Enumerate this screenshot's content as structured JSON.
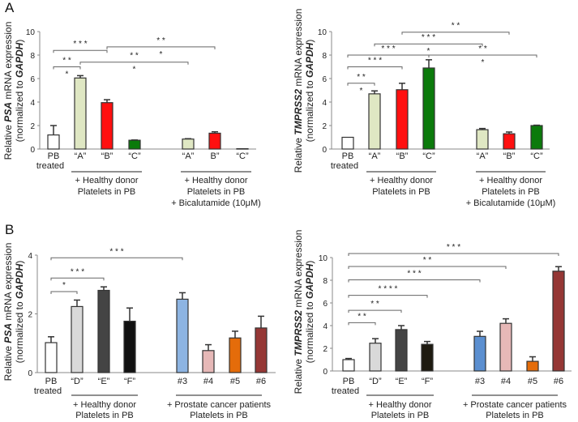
{
  "panels": {
    "a": "A",
    "b": "B"
  },
  "chart_data": [
    {
      "type": "bar",
      "title": "",
      "ylabel": {
        "line1": [
          "Relative ",
          "PSA",
          " mRNA expression"
        ],
        "line2": [
          "(normalized to ",
          "GAPDH",
          ")"
        ]
      },
      "ylim": [
        0,
        10
      ],
      "yticks": [
        0,
        2,
        4,
        6,
        8,
        10
      ],
      "categories": [
        [
          "PB",
          "treated"
        ],
        [
          "“A”"
        ],
        [
          "“B”"
        ],
        [
          "“C”"
        ],
        [
          "“A”"
        ],
        [
          "B”"
        ],
        [
          "“C”"
        ]
      ],
      "values": [
        1.2,
        6.05,
        3.95,
        0.75,
        0.85,
        1.35,
        0.03
      ],
      "errors": [
        0.8,
        0.2,
        0.25,
        0.02,
        0.03,
        0.12,
        0.0
      ],
      "colors": [
        "#ffffff",
        "#dfe7c3",
        "#ff1010",
        "#0b7a0b",
        "#dfe7c3",
        "#ff1010",
        "#0b7a0b"
      ],
      "groups": [
        {
          "lines": [
            "+ Healthy donor",
            "Platelets in PB"
          ]
        },
        {
          "lines": [
            "+ Healthy donor",
            "Platelets in PB",
            "+ Bicalutamide (10μM)"
          ]
        }
      ],
      "significance": [
        {
          "from": 0,
          "to": 1,
          "y": 7.0,
          "label": "* *",
          "label2": "*"
        },
        {
          "from": 0,
          "to": 2,
          "y": 8.4,
          "label": "* * *",
          "label2": ""
        },
        {
          "from": 1,
          "to": 4,
          "y": 7.4,
          "label": "* *",
          "label2": "*"
        },
        {
          "from": 2,
          "to": 5,
          "y": 8.7,
          "label": "* *",
          "label2": "*"
        }
      ]
    },
    {
      "type": "bar",
      "title": "",
      "ylabel": {
        "line1": [
          "Relative ",
          "TMPRSS2",
          " mRNA expression"
        ],
        "line2": [
          "(normalized to ",
          "GAPDH",
          ")"
        ]
      },
      "ylim": [
        0,
        10
      ],
      "yticks": [
        0,
        2,
        4,
        6,
        8,
        10
      ],
      "categories": [
        [
          "PB",
          "treated"
        ],
        [
          "“A”"
        ],
        [
          "“B”"
        ],
        [
          "“C”"
        ],
        [
          "“A”"
        ],
        [
          "“B”"
        ],
        [
          "“C”"
        ]
      ],
      "values": [
        1.0,
        4.7,
        5.05,
        6.9,
        1.65,
        1.3,
        2.0
      ],
      "errors": [
        0.0,
        0.25,
        0.55,
        0.7,
        0.1,
        0.15,
        0.03
      ],
      "colors": [
        "#ffffff",
        "#dfe7c3",
        "#ff1010",
        "#0b7a0b",
        "#dfe7c3",
        "#ff1010",
        "#0b7a0b"
      ],
      "groups": [
        {
          "lines": [
            "+ Healthy donor",
            "Platelets in PB"
          ]
        },
        {
          "lines": [
            "+ Healthy donor",
            "Platelets in PB",
            "+ Bicalutamide (10μM)"
          ]
        }
      ],
      "significance": [
        {
          "from": 0,
          "to": 1,
          "y": 5.6,
          "label": "* *",
          "label2": "*"
        },
        {
          "from": 0,
          "to": 2,
          "y": 7.0,
          "label": "* * *",
          "label2": ""
        },
        {
          "from": 0,
          "to": 3,
          "y": 8.0,
          "label": "* * *",
          "label2": ""
        },
        {
          "from": 3,
          "to": 6,
          "y": 8.0,
          "label": "* *",
          "label2": "*"
        },
        {
          "from": 1,
          "to": 4,
          "y": 8.95,
          "label": "* *      *",
          "label2": "*"
        },
        {
          "from": 2,
          "to": 5,
          "y": 9.95,
          "label": "* *",
          "label2": ""
        }
      ]
    },
    {
      "type": "bar",
      "title": "",
      "ylabel": {
        "line1": [
          "Relative ",
          "PSA",
          " mRNA expression"
        ],
        "line2": [
          "(normalized to ",
          "GAPDH",
          ")"
        ]
      },
      "ylim": [
        0,
        4
      ],
      "yticks": [
        0,
        2,
        4
      ],
      "categories": [
        [
          "PB",
          "treated"
        ],
        [
          "“D”"
        ],
        [
          "“E”"
        ],
        [
          "“F”"
        ],
        [
          "#3"
        ],
        [
          "#4"
        ],
        [
          "#5"
        ],
        [
          "#6"
        ]
      ],
      "values": [
        1.02,
        2.25,
        2.8,
        1.75,
        2.5,
        0.75,
        1.18,
        1.52
      ],
      "errors": [
        0.2,
        0.22,
        0.12,
        0.45,
        0.22,
        0.2,
        0.23,
        0.4
      ],
      "colors": [
        "#ffffff",
        "#d9d9d9",
        "#444444",
        "#111111",
        "#8db4e2",
        "#e6b8b7",
        "#e46c0a",
        "#953735"
      ],
      "groups": [
        {
          "lines": [
            "+ Healthy donor",
            "Platelets in PB"
          ]
        },
        {
          "lines": [
            "+ Prostate cancer patients",
            "Platelets in PB"
          ]
        }
      ],
      "significance": [
        {
          "from": 0,
          "to": 1,
          "y": 2.76,
          "label": "*",
          "label2": ""
        },
        {
          "from": 0,
          "to": 2,
          "y": 3.22,
          "label": "* * *",
          "label2": ""
        },
        {
          "from": 0,
          "to": 4,
          "y": 3.91,
          "label": "* * *",
          "label2": ""
        }
      ]
    },
    {
      "type": "bar",
      "title": "",
      "ylabel": {
        "line1": [
          "Relative ",
          "TMPRSS2",
          " mRNA expression"
        ],
        "line2": [
          "(normalized to ",
          "GAPDH",
          ")"
        ]
      },
      "ylim": [
        0,
        10
      ],
      "yticks": [
        0,
        2,
        4,
        6,
        8,
        10
      ],
      "categories": [
        [
          "PB",
          "treated"
        ],
        [
          "“D”"
        ],
        [
          "“E”"
        ],
        [
          "“F”"
        ],
        [
          "#3"
        ],
        [
          "#4"
        ],
        [
          "#5"
        ],
        [
          "#6"
        ]
      ],
      "values": [
        1.0,
        2.45,
        3.65,
        2.35,
        3.05,
        4.2,
        0.85,
        8.8
      ],
      "errors": [
        0.1,
        0.4,
        0.35,
        0.25,
        0.45,
        0.4,
        0.4,
        0.4
      ],
      "colors": [
        "#ffffff",
        "#d9d9d9",
        "#444444",
        "#1e1a10",
        "#5b8fd0",
        "#e6b8b7",
        "#e46c0a",
        "#953735"
      ],
      "groups": [
        {
          "lines": [
            "+ Healthy donor",
            "Platelets in PB"
          ]
        },
        {
          "lines": [
            "+ Prostate cancer patients",
            "Platelets in PB"
          ]
        }
      ],
      "significance": [
        {
          "from": 0,
          "to": 1,
          "y": 4.26,
          "label": "*  *",
          "label2": ""
        },
        {
          "from": 0,
          "to": 2,
          "y": 5.35,
          "label": "* *",
          "label2": ""
        },
        {
          "from": 0,
          "to": 3,
          "y": 6.67,
          "label": "* * *        *",
          "label2": ""
        },
        {
          "from": 0,
          "to": 4,
          "y": 8.04,
          "label": "* *   *",
          "label2": ""
        },
        {
          "from": 0,
          "to": 5,
          "y": 9.21,
          "label": "* *",
          "label2": ""
        },
        {
          "from": 0,
          "to": 7,
          "y": 10.36,
          "label": "* * *",
          "label2": ""
        }
      ]
    }
  ]
}
